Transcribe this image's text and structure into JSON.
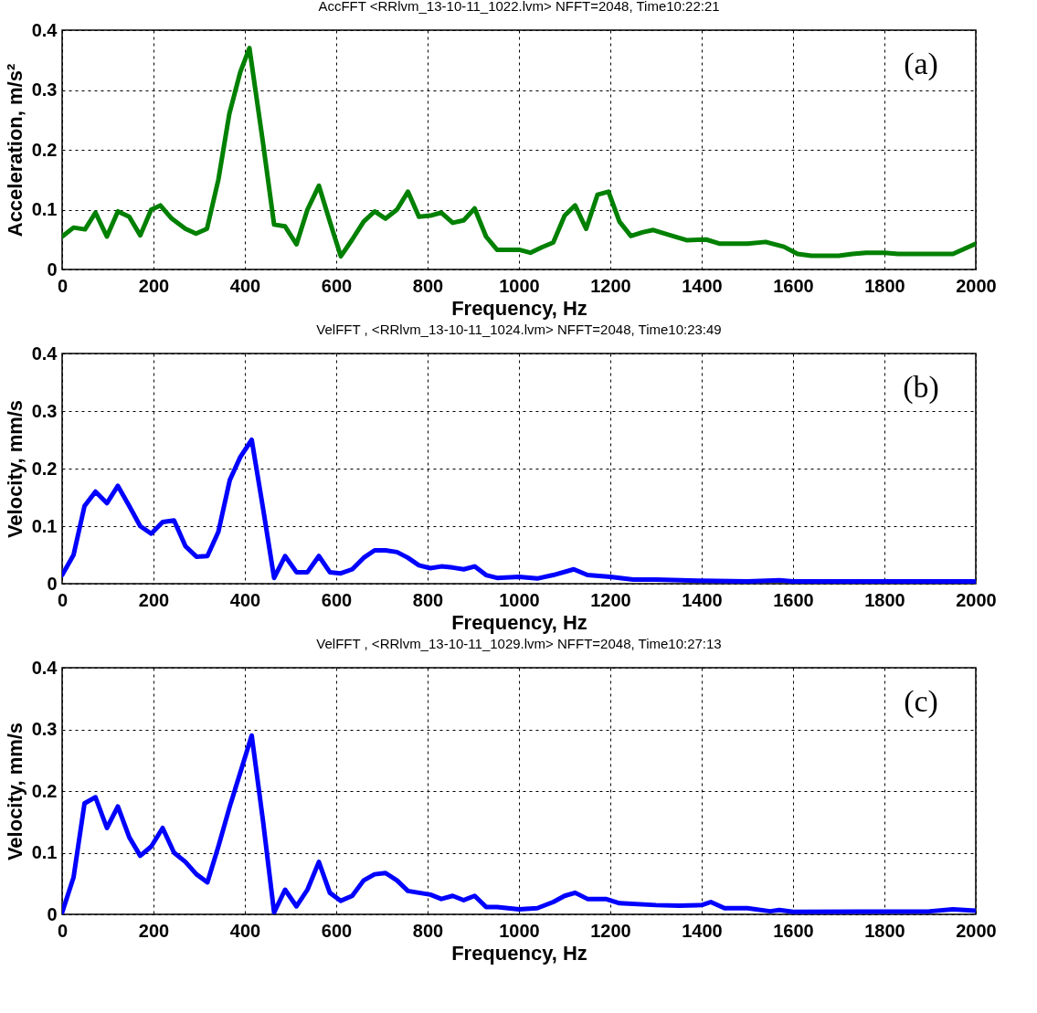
{
  "chart_data": [
    {
      "type": "line",
      "title": "AccFFT     <RRlvm_13-10-11_1022.lvm>  NFFT=2048, Time10:22:21",
      "xlabel": "Frequency, Hz",
      "ylabel": "Acceleration, m/s²",
      "annotations": [
        "(a)"
      ],
      "grid": true,
      "xlim": [
        0,
        2000
      ],
      "xticks": [
        0,
        200,
        400,
        600,
        800,
        1000,
        1200,
        1400,
        1600,
        1800,
        2000
      ],
      "ylim": [
        0,
        0.4
      ],
      "yticks": [
        0,
        0.1,
        0.2,
        0.3,
        0.4
      ],
      "x": [
        0,
        25,
        50,
        73,
        98,
        122,
        147,
        171,
        195,
        215,
        240,
        270,
        293,
        317,
        342,
        366,
        390,
        410,
        440,
        464,
        488,
        513,
        537,
        562,
        586,
        610,
        635,
        660,
        684,
        708,
        733,
        757,
        781,
        806,
        830,
        855,
        879,
        903,
        928,
        952,
        1000,
        1025,
        1050,
        1075,
        1100,
        1123,
        1147,
        1172,
        1196,
        1220,
        1245,
        1270,
        1294,
        1340,
        1367,
        1410,
        1440,
        1500,
        1540,
        1580,
        1610,
        1640,
        1700,
        1730,
        1760,
        1800,
        1830,
        1950,
        2000
      ],
      "series": [
        {
          "color": "#008000",
          "values": [
            0.055,
            0.07,
            0.067,
            0.095,
            0.055,
            0.097,
            0.088,
            0.057,
            0.1,
            0.107,
            0.085,
            0.068,
            0.06,
            0.068,
            0.15,
            0.26,
            0.33,
            0.37,
            0.21,
            0.075,
            0.072,
            0.042,
            0.1,
            0.14,
            0.08,
            0.022,
            0.05,
            0.08,
            0.097,
            0.085,
            0.1,
            0.13,
            0.088,
            0.09,
            0.095,
            0.078,
            0.082,
            0.102,
            0.055,
            0.033,
            0.033,
            0.028,
            0.037,
            0.045,
            0.09,
            0.107,
            0.068,
            0.125,
            0.13,
            0.08,
            0.056,
            0.062,
            0.066,
            0.055,
            0.049,
            0.05,
            0.043,
            0.043,
            0.046,
            0.038,
            0.026,
            0.023,
            0.023,
            0.026,
            0.028,
            0.028,
            0.026,
            0.026,
            0.043
          ]
        }
      ]
    },
    {
      "type": "line",
      "title": "VelFFT , <RRlvm_13-10-11_1024.lvm>  NFFT=2048, Time10:23:49",
      "xlabel": "Frequency, Hz",
      "ylabel": "Velocity, mm/s",
      "annotations": [
        "(b)"
      ],
      "grid": true,
      "xlim": [
        0,
        2000
      ],
      "xticks": [
        0,
        200,
        400,
        600,
        800,
        1000,
        1200,
        1400,
        1600,
        1800,
        2000
      ],
      "ylim": [
        0,
        0.4
      ],
      "yticks": [
        0,
        0.1,
        0.2,
        0.3,
        0.4
      ],
      "x": [
        0,
        25,
        49,
        73,
        98,
        122,
        147,
        171,
        195,
        220,
        245,
        270,
        294,
        318,
        342,
        367,
        390,
        415,
        440,
        464,
        488,
        513,
        537,
        562,
        586,
        610,
        635,
        660,
        684,
        708,
        733,
        757,
        781,
        806,
        830,
        855,
        879,
        903,
        928,
        952,
        1000,
        1040,
        1075,
        1120,
        1150,
        1200,
        1250,
        1300,
        1400,
        1500,
        1570,
        1600,
        2000
      ],
      "series": [
        {
          "color": "#0000ff",
          "values": [
            0.015,
            0.05,
            0.135,
            0.16,
            0.14,
            0.17,
            0.135,
            0.1,
            0.087,
            0.107,
            0.11,
            0.065,
            0.047,
            0.048,
            0.09,
            0.18,
            0.22,
            0.25,
            0.13,
            0.01,
            0.048,
            0.02,
            0.02,
            0.048,
            0.02,
            0.018,
            0.025,
            0.045,
            0.058,
            0.058,
            0.055,
            0.045,
            0.032,
            0.027,
            0.03,
            0.028,
            0.025,
            0.03,
            0.015,
            0.01,
            0.012,
            0.009,
            0.015,
            0.025,
            0.015,
            0.012,
            0.007,
            0.007,
            0.005,
            0.004,
            0.006,
            0.004,
            0.004
          ]
        }
      ]
    },
    {
      "type": "line",
      "title": "VelFFT , <RRlvm_13-10-11_1029.lvm>  NFFT=2048, Time10:27:13",
      "xlabel": "Frequency, Hz",
      "ylabel": "Velocity, mm/s",
      "annotations": [
        "(c)"
      ],
      "grid": true,
      "xlim": [
        0,
        2000
      ],
      "xticks": [
        0,
        200,
        400,
        600,
        800,
        1000,
        1200,
        1400,
        1600,
        1800,
        2000
      ],
      "ylim": [
        0,
        0.4
      ],
      "yticks": [
        0,
        0.1,
        0.2,
        0.3,
        0.4
      ],
      "x": [
        0,
        25,
        49,
        73,
        98,
        122,
        147,
        171,
        195,
        220,
        245,
        270,
        294,
        318,
        342,
        367,
        390,
        415,
        440,
        464,
        488,
        513,
        537,
        562,
        586,
        610,
        635,
        660,
        684,
        708,
        733,
        757,
        781,
        806,
        830,
        855,
        879,
        903,
        928,
        952,
        1000,
        1040,
        1075,
        1100,
        1123,
        1150,
        1190,
        1220,
        1300,
        1350,
        1400,
        1420,
        1450,
        1500,
        1550,
        1570,
        1600,
        1900,
        1950,
        2000
      ],
      "series": [
        {
          "color": "#0000ff",
          "values": [
            0.003,
            0.06,
            0.18,
            0.19,
            0.14,
            0.175,
            0.125,
            0.095,
            0.11,
            0.14,
            0.1,
            0.085,
            0.065,
            0.052,
            0.11,
            0.175,
            0.23,
            0.29,
            0.15,
            0.003,
            0.04,
            0.013,
            0.04,
            0.085,
            0.035,
            0.022,
            0.03,
            0.055,
            0.065,
            0.067,
            0.055,
            0.038,
            0.035,
            0.032,
            0.025,
            0.03,
            0.023,
            0.03,
            0.012,
            0.012,
            0.008,
            0.01,
            0.02,
            0.03,
            0.035,
            0.025,
            0.025,
            0.018,
            0.015,
            0.014,
            0.015,
            0.02,
            0.01,
            0.01,
            0.005,
            0.007,
            0.004,
            0.005,
            0.008,
            0.006
          ]
        }
      ]
    }
  ]
}
